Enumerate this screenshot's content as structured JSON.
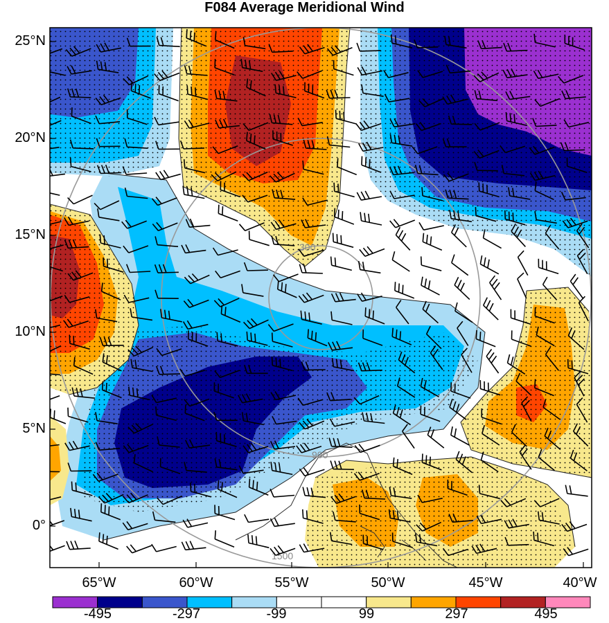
{
  "title": "F084 Average Meridional Wind",
  "lat_labels": [
    "25°N",
    "20°N",
    "15°N",
    "10°N",
    "5°N",
    "0°"
  ],
  "lon_labels": [
    "65°W",
    "60°W",
    "55°W",
    "50°W",
    "45°W",
    "40°W"
  ],
  "colorbar": {
    "colors": [
      "#9b30d0",
      "#00008b",
      "#3a56cc",
      "#00bfff",
      "#aadcf5",
      "#ffffff",
      "#ffffff",
      "#f8e88c",
      "#ffa500",
      "#ff4500",
      "#b22222",
      "#ff88bb"
    ],
    "labels": [
      "-495",
      "-297",
      "-99",
      "99",
      "297",
      "495"
    ]
  },
  "range_rings": [
    "300",
    "900",
    "1500"
  ]
}
